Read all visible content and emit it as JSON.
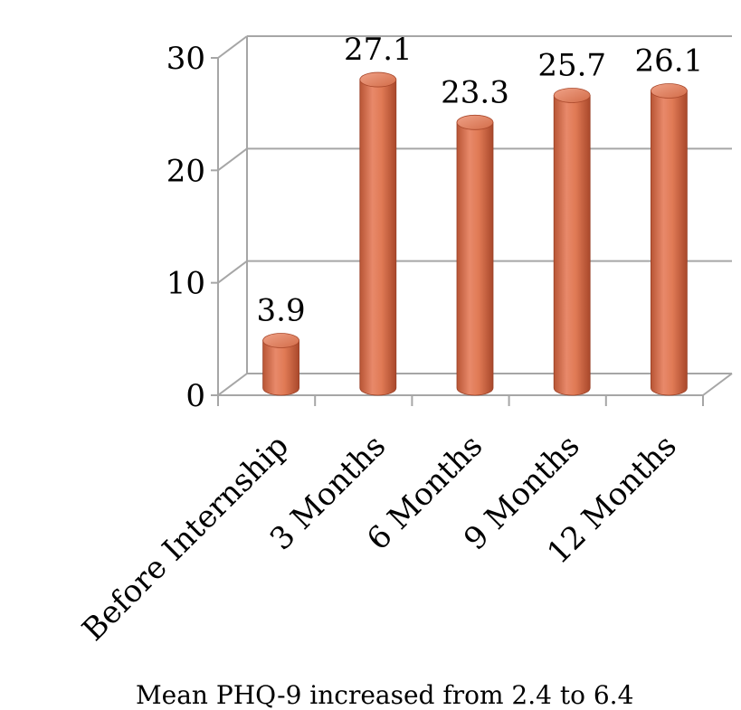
{
  "chart_data": {
    "type": "bar",
    "style": "3d-cylinder",
    "categories": [
      "Before Internship",
      "3 Months",
      "6 Months",
      "9 Months",
      "12 Months"
    ],
    "values": [
      3.9,
      27.1,
      23.3,
      25.7,
      26.1
    ],
    "data_labels": [
      "3.9",
      "27.1",
      "23.3",
      "25.7",
      "26.1"
    ],
    "yticks": [
      "0",
      "10",
      "20",
      "30"
    ],
    "ylim": [
      0,
      30
    ],
    "grid": true,
    "bar_color": "#E07A55",
    "caption": "Mean PHQ-9 increased from 2.4 to 6.4"
  }
}
